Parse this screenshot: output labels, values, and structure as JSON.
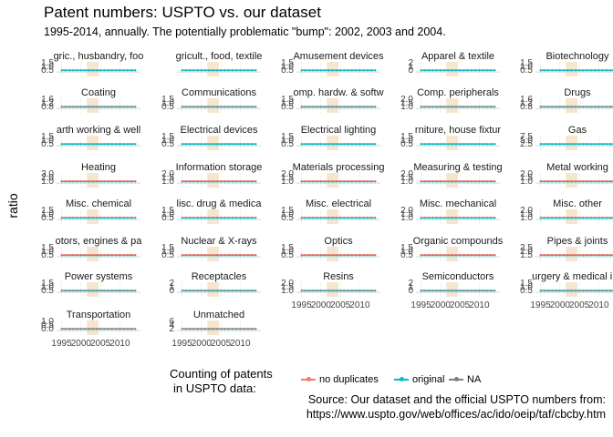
{
  "title": "Patent numbers: USPTO vs. our dataset",
  "subtitle": "1995-2014, annually. The potentially problematic \"bump\": 2002, 2003 and 2004.",
  "ylabel": "ratio",
  "legend": {
    "title_line1": "Counting of patents",
    "title_line2": "in USPTO data:",
    "items": [
      {
        "label": "no duplicates",
        "color": "#F8766D"
      },
      {
        "label": "original",
        "color": "#00BFC4"
      },
      {
        "label": "NA",
        "color": "#7F7F7F"
      }
    ]
  },
  "source_line1": "Source: Our dataset and the official USPTO numbers from:",
  "source_line2": "https://www.uspto.gov/web/offices/ac/ido/oeip/taf/cbcby.htm",
  "colors": {
    "no_duplicates": "#F8766D",
    "original": "#00BFC4",
    "bump_band": "#F3DDBF",
    "grid": "#EBEBEB"
  },
  "chart_data": {
    "type": "line",
    "facet": "small multiples, one per category, free y scales",
    "x_ticks": [
      "1995",
      "2000",
      "2005",
      "2010"
    ],
    "years": [
      1995,
      1996,
      1997,
      1998,
      1999,
      2000,
      2001,
      2002,
      2003,
      2004,
      2005,
      2006,
      2007,
      2008,
      2009,
      2010,
      2011,
      2012,
      2013,
      2014
    ],
    "highlighted_years": [
      2002,
      2003,
      2004
    ],
    "series": [
      {
        "name": "no duplicates",
        "color": "#F8766D"
      },
      {
        "name": "original",
        "color": "#00BFC4"
      }
    ],
    "panels": [
      {
        "title": "Agric., husbandry, food",
        "display_title": "gric., husbandry, foo",
        "y_ticks": [
          "1.5",
          "1.0",
          "0.5"
        ],
        "no_duplicates": 1.05,
        "original": 1.0
      },
      {
        "title": "Agricult., food, textile",
        "display_title": "gricult., food, textile",
        "y_ticks": [],
        "no_duplicates": 1.05,
        "original": 1.0
      },
      {
        "title": "Amusement devices",
        "display_title": "Amusement devices",
        "y_ticks": [
          "1.5",
          "1.0",
          "0.5"
        ],
        "no_duplicates": 1.05,
        "original": 1.0
      },
      {
        "title": "Apparel & textile",
        "display_title": "Apparel & textile",
        "y_ticks": [
          "2",
          "1",
          "0"
        ],
        "no_duplicates": 1.05,
        "original": 1.0
      },
      {
        "title": "Biotechnology",
        "display_title": "Biotechnology",
        "y_ticks": [
          "1.5",
          "1.0",
          "0.5"
        ],
        "no_duplicates": 1.05,
        "original": 1.0
      },
      {
        "title": "Coating",
        "display_title": "Coating",
        "y_ticks": [
          "1.6",
          "1.2",
          "0.8"
        ],
        "no_duplicates": 1.05,
        "original": 1.0
      },
      {
        "title": "Communications",
        "display_title": "Communications",
        "y_ticks": [
          "1.5",
          "1.0",
          "0.5"
        ],
        "no_duplicates": 1.05,
        "original": 1.0
      },
      {
        "title": "Comp. hardw. & software",
        "display_title": "omp. hardw. & softw",
        "y_ticks": [
          "1.5",
          "1.0",
          "0.5"
        ],
        "no_duplicates": 1.05,
        "original": 1.0
      },
      {
        "title": "Comp. peripherals",
        "display_title": "Comp. peripherals",
        "y_ticks": [
          "2.0",
          "1.5",
          "1.0"
        ],
        "no_duplicates": 1.05,
        "original": 1.0
      },
      {
        "title": "Drugs",
        "display_title": "Drugs",
        "y_ticks": [
          "1.6",
          "1.2",
          "0.8"
        ],
        "no_duplicates": 1.05,
        "original": 1.0
      },
      {
        "title": "Earth working & wells",
        "display_title": "arth working & well",
        "y_ticks": [
          "1.5",
          "1.0",
          "0.5"
        ],
        "no_duplicates": 1.05,
        "original": 1.0
      },
      {
        "title": "Electrical devices",
        "display_title": "Electrical devices",
        "y_ticks": [
          "1.5",
          "1.0",
          "0.5"
        ],
        "no_duplicates": 1.05,
        "original": 1.0
      },
      {
        "title": "Electrical lighting",
        "display_title": "Electrical lighting",
        "y_ticks": [
          "1.5",
          "1.0",
          "0.5"
        ],
        "no_duplicates": 1.05,
        "original": 1.0
      },
      {
        "title": "Furniture, house fixtures",
        "display_title": "rniture, house fixtur",
        "y_ticks": [
          "1.5",
          "1.0",
          "0.5"
        ],
        "no_duplicates": 1.05,
        "original": 1.0
      },
      {
        "title": "Gas",
        "display_title": "Gas",
        "y_ticks": [
          "7.5",
          "5.0",
          "2.5"
        ],
        "no_duplicates": 1.05,
        "original": 1.0
      },
      {
        "title": "Heating",
        "display_title": "Heating",
        "y_ticks": [
          "3.0",
          "2.0",
          "1.0"
        ],
        "no_duplicates": 1.05,
        "original": 1.0
      },
      {
        "title": "Information storage",
        "display_title": "Information storage",
        "y_ticks": [
          "2.0",
          "1.5",
          "1.0"
        ],
        "no_duplicates": 1.05,
        "original": 1.0
      },
      {
        "title": "Materials processing",
        "display_title": "Materials processing",
        "y_ticks": [
          "2.0",
          "1.5",
          "1.0"
        ],
        "no_duplicates": 1.05,
        "original": 1.0
      },
      {
        "title": "Measuring & testing",
        "display_title": "Measuring & testing",
        "y_ticks": [
          "2.0",
          "1.5",
          "1.0"
        ],
        "no_duplicates": 1.05,
        "original": 1.0
      },
      {
        "title": "Metal working",
        "display_title": "Metal working",
        "y_ticks": [
          "2.0",
          "1.5",
          "1.0"
        ],
        "no_duplicates": 1.05,
        "original": 1.0
      },
      {
        "title": "Misc. chemical",
        "display_title": "Misc. chemical",
        "y_ticks": [
          "1.5",
          "1.0",
          "0.5"
        ],
        "no_duplicates": 1.05,
        "original": 1.0
      },
      {
        "title": "Misc. drug & medical",
        "display_title": "lisc. drug & medica",
        "y_ticks": [
          "1.5",
          "1.0",
          "0.5"
        ],
        "no_duplicates": 1.05,
        "original": 1.0
      },
      {
        "title": "Misc. electrical",
        "display_title": "Misc. electrical",
        "y_ticks": [
          "1.5",
          "1.0",
          "0.5"
        ],
        "no_duplicates": 1.05,
        "original": 1.0
      },
      {
        "title": "Misc. mechanical",
        "display_title": "Misc. mechanical",
        "y_ticks": [
          "2.0",
          "1.5",
          "1.0"
        ],
        "no_duplicates": 1.05,
        "original": 1.0
      },
      {
        "title": "Misc. other",
        "display_title": "Misc. other",
        "y_ticks": [
          "2.0",
          "1.5",
          "1.0"
        ],
        "no_duplicates": 1.05,
        "original": 1.0
      },
      {
        "title": "Motors, engines & parts",
        "display_title": "otors, engines & pa",
        "y_ticks": [
          "1.5",
          "1.0",
          "0.5"
        ],
        "no_duplicates": 1.05,
        "original": 1.0
      },
      {
        "title": "Nuclear & X-rays",
        "display_title": "Nuclear & X-rays",
        "y_ticks": [
          "1.5",
          "1.0",
          "0.5"
        ],
        "no_duplicates": 1.05,
        "original": 1.0
      },
      {
        "title": "Optics",
        "display_title": "Optics",
        "y_ticks": [
          "1.5",
          "1.0",
          "0.5"
        ],
        "no_duplicates": 1.05,
        "original": 1.0
      },
      {
        "title": "Organic compounds",
        "display_title": "Organic compounds",
        "y_ticks": [
          "1.5",
          "1.0",
          "0.5"
        ],
        "no_duplicates": 1.05,
        "original": 1.0
      },
      {
        "title": "Pipes & joints",
        "display_title": "Pipes & joints",
        "y_ticks": [
          "2.5",
          "2.0",
          "1.5"
        ],
        "no_duplicates": 1.05,
        "original": 1.0
      },
      {
        "title": "Power systems",
        "display_title": "Power systems",
        "y_ticks": [
          "1.5",
          "1.0",
          "0.5"
        ],
        "no_duplicates": 1.05,
        "original": 1.0
      },
      {
        "title": "Receptacles",
        "display_title": "Receptacles",
        "y_ticks": [
          "2",
          "1",
          "0"
        ],
        "no_duplicates": 1.05,
        "original": 1.0
      },
      {
        "title": "Resins",
        "display_title": "Resins",
        "y_ticks": [
          "2.0",
          "1.5",
          "1.0"
        ],
        "no_duplicates": 1.05,
        "original": 1.0
      },
      {
        "title": "Semiconductors",
        "display_title": "Semiconductors",
        "y_ticks": [
          "2",
          "1",
          "0"
        ],
        "no_duplicates": 1.05,
        "original": 1.0
      },
      {
        "title": "Surgery & medical instr.",
        "display_title": "urgery & medical ins",
        "y_ticks": [
          "1.5",
          "1.0",
          "0.5"
        ],
        "no_duplicates": 1.05,
        "original": 1.0
      },
      {
        "title": "Transportation",
        "display_title": "Transportation",
        "y_ticks": [
          "1.0",
          "0.5",
          "0.0"
        ],
        "no_duplicates": 1.05,
        "original": 1.0
      },
      {
        "title": "Unmatched",
        "display_title": "Unmatched",
        "y_ticks": [
          "6",
          "4",
          "2"
        ],
        "no_duplicates": 1.05,
        "original": 1.0
      }
    ]
  }
}
